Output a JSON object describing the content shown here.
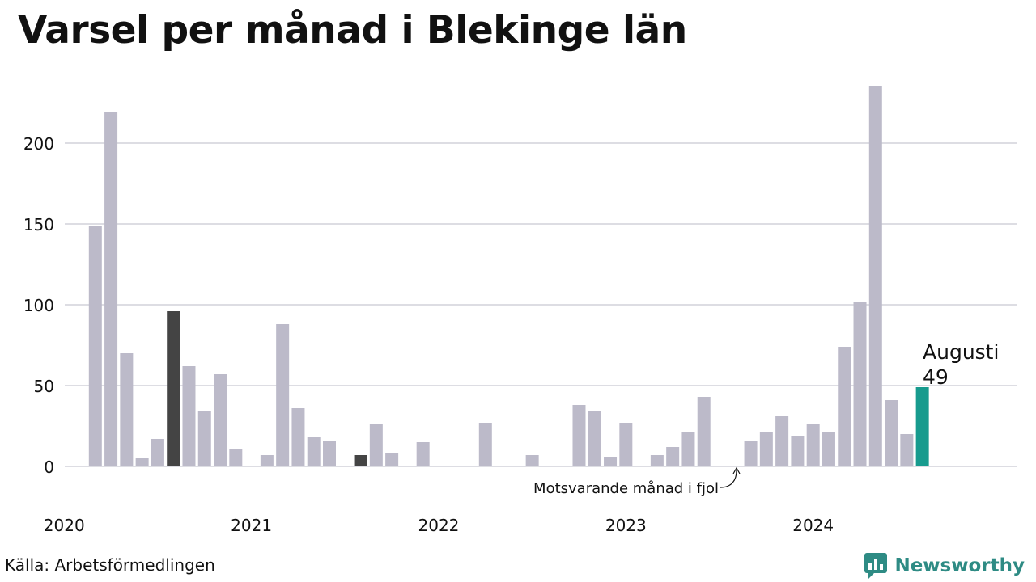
{
  "title": "Varsel per månad i Blekinge län",
  "source": "Källa: Arbetsförmedlingen",
  "brand": {
    "name": "Newsworthy",
    "icon": "bar-chart-speech-bubble-icon",
    "color": "#2e8b84"
  },
  "chart_data": {
    "type": "bar",
    "title": "Varsel per månad i Blekinge län",
    "xlabel": "",
    "ylabel": "",
    "ylim": [
      0,
      240
    ],
    "y_ticks": [
      0,
      50,
      100,
      150,
      200
    ],
    "x_ticks": [
      "2020",
      "2021",
      "2022",
      "2023",
      "2024"
    ],
    "grid": "horizontal",
    "colors": {
      "default": "#bcbac9",
      "same_month_prior_years": "#444444",
      "current": "#179b8e"
    },
    "series": [
      {
        "values": [
          149,
          219,
          70,
          5,
          17,
          96,
          62,
          34,
          57,
          11,
          0,
          7,
          88,
          36,
          18,
          16,
          0,
          7,
          26,
          8,
          0,
          15,
          0,
          0,
          0,
          27,
          0,
          0,
          7,
          0,
          0,
          38,
          34,
          6,
          27,
          0,
          7,
          12,
          21,
          43,
          0,
          0,
          16,
          21,
          31,
          19,
          26,
          21,
          74,
          102,
          235,
          41,
          20,
          49
        ]
      }
    ],
    "start": "2020-03",
    "highlight_dark": [
      "2020-08",
      "2021-08"
    ],
    "highlight_current": "2024-08",
    "annotations": {
      "previous_year": "Motsvarande månad i fjol",
      "current_label": "Augusti",
      "current_value": "49"
    }
  }
}
